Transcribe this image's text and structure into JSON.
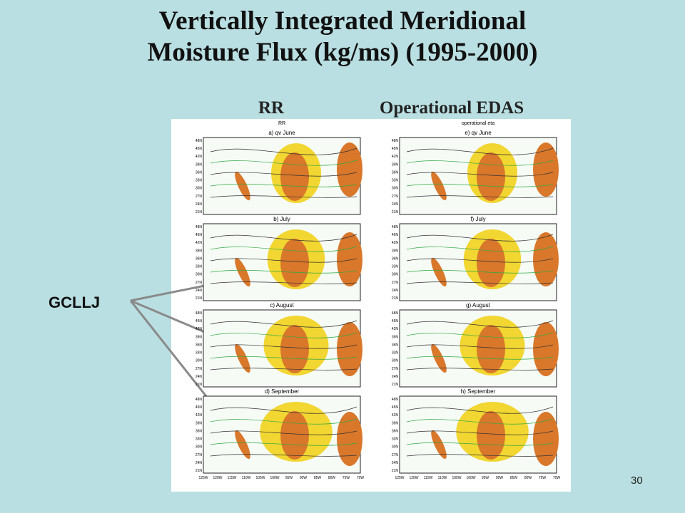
{
  "title": [
    "Vertically Integrated Meridional",
    "Moisture Flux (kg/ms) (1995-2000)"
  ],
  "columns": [
    "RR",
    "Operational EDAS"
  ],
  "figure": {
    "panel_headers": [
      "RR",
      "operational eta"
    ],
    "panels": [
      "a) qv June",
      "b) July",
      "c) August",
      "d) September",
      "e) qv June",
      "f) July",
      "g) August",
      "h) September"
    ],
    "lat_labels": [
      "48N",
      "45N",
      "42N",
      "39N",
      "36N",
      "33N",
      "30N",
      "27N",
      "24N",
      "21N"
    ],
    "lon_labels": [
      "125W",
      "120W",
      "115W",
      "110W",
      "105W",
      "100W",
      "95W",
      "90W",
      "85W",
      "80W",
      "75W",
      "70W"
    ]
  },
  "callout": "GCLLJ",
  "page_number": "30"
}
